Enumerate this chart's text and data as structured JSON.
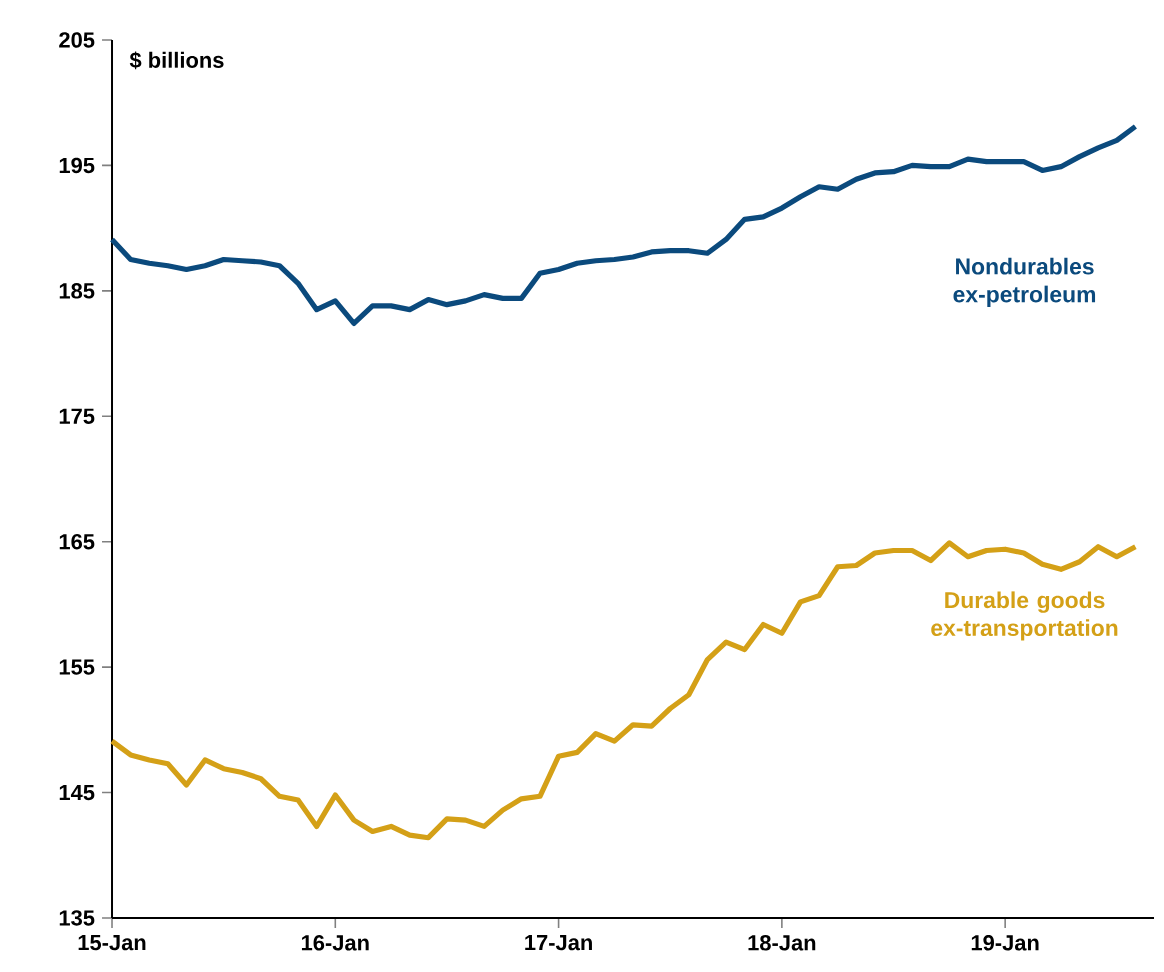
{
  "chart_data": {
    "type": "line",
    "ylabel": "$ billions",
    "x": [
      "2015-01",
      "2015-02",
      "2015-03",
      "2015-04",
      "2015-05",
      "2015-06",
      "2015-07",
      "2015-08",
      "2015-09",
      "2015-10",
      "2015-11",
      "2015-12",
      "2016-01",
      "2016-02",
      "2016-03",
      "2016-04",
      "2016-05",
      "2016-06",
      "2016-07",
      "2016-08",
      "2016-09",
      "2016-10",
      "2016-11",
      "2016-12",
      "2017-01",
      "2017-02",
      "2017-03",
      "2017-04",
      "2017-05",
      "2017-06",
      "2017-07",
      "2017-08",
      "2017-09",
      "2017-10",
      "2017-11",
      "2017-12",
      "2018-01",
      "2018-02",
      "2018-03",
      "2018-04",
      "2018-05",
      "2018-06",
      "2018-07",
      "2018-08",
      "2018-09",
      "2018-10",
      "2018-11",
      "2018-12",
      "2019-01",
      "2019-02",
      "2019-03",
      "2019-04",
      "2019-05",
      "2019-06",
      "2019-07",
      "2019-08"
    ],
    "series": [
      {
        "name": "Nondurables ex-petroleum",
        "color": "#0b4a7d",
        "values": [
          189.1,
          187.5,
          187.2,
          187.0,
          186.7,
          187.0,
          187.5,
          187.4,
          187.3,
          187.0,
          185.6,
          183.5,
          184.2,
          182.4,
          183.8,
          183.8,
          183.5,
          184.3,
          183.9,
          184.2,
          184.7,
          184.4,
          184.4,
          186.4,
          186.7,
          187.2,
          187.4,
          187.5,
          187.7,
          188.1,
          188.2,
          188.2,
          188.0,
          189.1,
          190.7,
          190.9,
          191.6,
          192.5,
          193.3,
          193.1,
          193.9,
          194.4,
          194.5,
          195.0,
          194.9,
          194.9,
          195.5,
          195.3,
          195.3,
          195.3,
          194.6,
          194.9,
          195.7,
          196.4,
          197.0,
          198.1
        ]
      },
      {
        "name": "Durable goods ex-transportation",
        "color": "#d4a017",
        "values": [
          149.1,
          148.0,
          147.6,
          147.3,
          145.6,
          147.6,
          146.9,
          146.6,
          146.1,
          144.7,
          144.4,
          142.3,
          144.8,
          142.8,
          141.9,
          142.3,
          141.6,
          141.4,
          142.9,
          142.8,
          142.3,
          143.6,
          144.5,
          144.7,
          147.9,
          148.2,
          149.7,
          149.1,
          150.4,
          150.3,
          151.7,
          152.8,
          155.6,
          157.0,
          156.4,
          158.4,
          157.7,
          160.2,
          160.7,
          163.0,
          163.1,
          164.1,
          164.3,
          164.3,
          163.5,
          164.9,
          163.8,
          164.3,
          164.4,
          164.1,
          163.2,
          162.8,
          163.4,
          164.6,
          163.8,
          164.6
        ]
      }
    ],
    "xlim": [
      "2015-01",
      "2019-09"
    ],
    "xticks": [
      {
        "value": "2015-01",
        "label": "15-Jan"
      },
      {
        "value": "2016-01",
        "label": "16-Jan"
      },
      {
        "value": "2017-01",
        "label": "17-Jan"
      },
      {
        "value": "2018-01",
        "label": "18-Jan"
      },
      {
        "value": "2019-01",
        "label": "19-Jan"
      }
    ],
    "ylim": [
      135,
      205
    ],
    "yticks": [
      135,
      145,
      155,
      165,
      175,
      185,
      195,
      205
    ],
    "grid": false,
    "marker": "none",
    "line_style": "solid"
  }
}
